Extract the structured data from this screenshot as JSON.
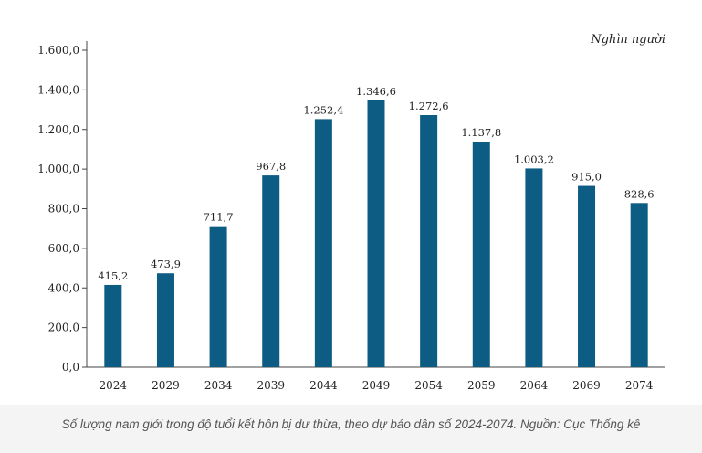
{
  "chart_data": {
    "type": "bar",
    "categories": [
      "2024",
      "2029",
      "2034",
      "2039",
      "2044",
      "2049",
      "2054",
      "2059",
      "2064",
      "2069",
      "2074"
    ],
    "values": [
      415.2,
      473.9,
      711.7,
      967.8,
      1252.4,
      1346.6,
      1272.6,
      1137.8,
      1003.2,
      915.0,
      828.6
    ],
    "value_labels": [
      "415,2",
      "473,9",
      "711,7",
      "967,8",
      "1.252,4",
      "1.346,6",
      "1.272,6",
      "1.137,8",
      "1.003,2",
      "915,0",
      "828,6"
    ],
    "yticks": [
      "0,0",
      "200,0",
      "400,0",
      "600,0",
      "800,0",
      "1.000,0",
      "1.200,0",
      "1.400,0",
      "1.600,0"
    ],
    "ylim": [
      0,
      1600
    ],
    "unit": "Nghìn người",
    "bar_color": "#0d5c83",
    "grid": false,
    "legend": "none"
  },
  "caption": "Số lượng nam giới trong độ tuổi kết hôn bị dư thừa, theo dự báo dân số 2024-2074. Nguồn: Cục Thống kê"
}
